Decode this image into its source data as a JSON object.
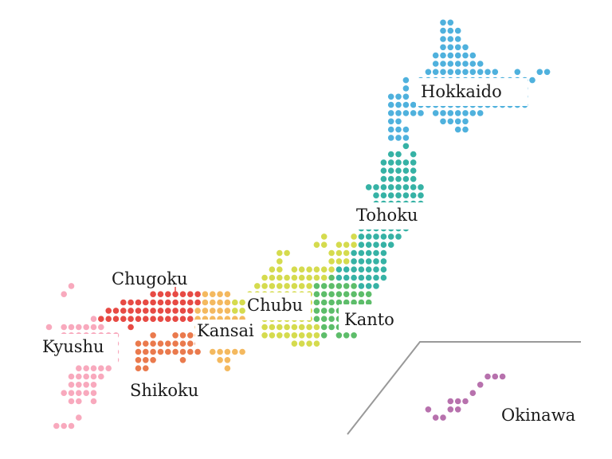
{
  "regions": [
    {
      "id": "hokkaido",
      "name": "Hokkaido",
      "color": "#4fb1dd"
    },
    {
      "id": "tohoku",
      "name": "Tohoku",
      "color": "#36b2a5"
    },
    {
      "id": "kanto",
      "name": "Kanto",
      "color": "#5dbd6a"
    },
    {
      "id": "chubu",
      "name": "Chubu",
      "color": "#d5db4e"
    },
    {
      "id": "kansai",
      "name": "Kansai",
      "color": "#f4b95f"
    },
    {
      "id": "chugoku",
      "name": "Chugoku",
      "color": "#e74a44"
    },
    {
      "id": "shikoku",
      "name": "Shikoku",
      "color": "#ea7a4d"
    },
    {
      "id": "kyushu",
      "name": "Kyushu",
      "color": "#f8a9bd"
    },
    {
      "id": "okinawa",
      "name": "Okinawa",
      "color": "#b771ad"
    }
  ],
  "inset_line_color": "#999999"
}
